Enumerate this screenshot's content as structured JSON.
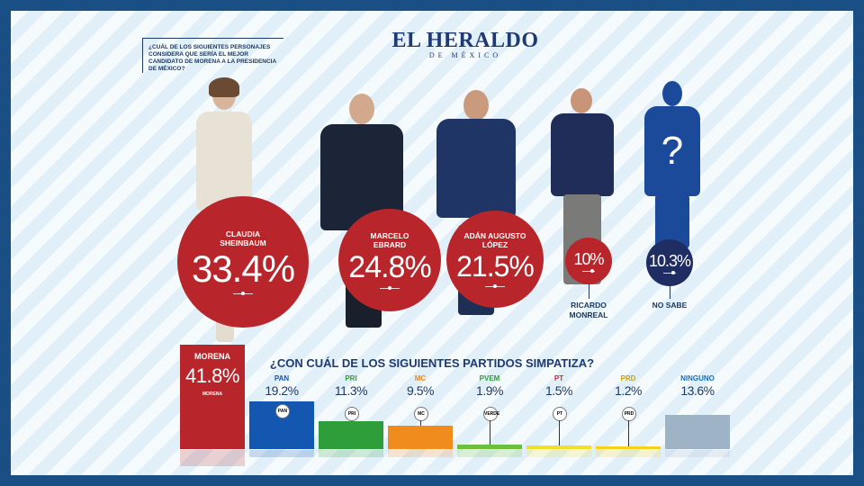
{
  "question": "¿CUÁL DE LOS SIGUIENTES PERSONAJES CONSIDERA QUE SERÍA EL MEJOR CANDIDATO DE MORENA A LA PRESIDENCIA DE MÉXICO?",
  "brand": {
    "name": "EL HERALDO",
    "sub": "DE MÉXICO"
  },
  "candidates": [
    {
      "name": "CLAUDIA SHEINBAUM",
      "pct": "33.4%",
      "value": 33.4,
      "color": "#b8262b"
    },
    {
      "name": "MARCELO EBRARD",
      "pct": "24.8%",
      "value": 24.8,
      "color": "#b8262b"
    },
    {
      "name": "ADÁN AUGUSTO LÓPEZ",
      "pct": "21.5%",
      "value": 21.5,
      "color": "#b8262b"
    },
    {
      "name": "RICARDO MONREAL",
      "pct": "10%",
      "value": 10,
      "color": "#b8262b"
    },
    {
      "name": "NO SABE",
      "pct": "10.3%",
      "value": 10.3,
      "color": "#1f2d63"
    }
  ],
  "parties_title": "¿CON CUÁL DE LOS SIGUIENTES PARTIDOS SIMPATIZA?",
  "chart_data": [
    {
      "type": "bar",
      "title": "¿CUÁL DE LOS SIGUIENTES PERSONAJES CONSIDERA QUE SERÍA EL MEJOR CANDIDATO DE MORENA A LA PRESIDENCIA DE MÉXICO?",
      "categories": [
        "CLAUDIA SHEINBAUM",
        "MARCELO EBRARD",
        "ADÁN AUGUSTO LÓPEZ",
        "RICARDO MONREAL",
        "NO SABE"
      ],
      "values": [
        33.4,
        24.8,
        21.5,
        10,
        10.3
      ]
    },
    {
      "type": "bar",
      "title": "¿CON CUÁL DE LOS SIGUIENTES PARTIDOS SIMPATIZA?",
      "categories": [
        "MORENA",
        "PAN",
        "PRI",
        "MC",
        "PVEM",
        "PT",
        "PRD",
        "NINGUNO"
      ],
      "values": [
        41.8,
        19.2,
        11.3,
        9.5,
        1.9,
        1.5,
        1.2,
        13.6
      ],
      "labels": [
        "41.8%",
        "19.2%",
        "11.3%",
        "9.5%",
        "1.9%",
        "1.5%",
        "1.2%",
        "13.6%"
      ],
      "colors": [
        "#b8262b",
        "#1457b0",
        "#2e9e3a",
        "#f08c1e",
        "#6cbf3b",
        "#f2df2a",
        "#f6d21c",
        "#9fb3c7"
      ],
      "label_colors": [
        "#ffffff",
        "#1457b0",
        "#2e9e3a",
        "#f08c1e",
        "#2e9e3a",
        "#d42a2a",
        "#c9a200",
        "#1a6fb0"
      ],
      "logos": [
        "MORENA",
        "PAN",
        "PRI",
        "MC",
        "VERDE",
        "PT",
        "PRD",
        ""
      ]
    }
  ]
}
